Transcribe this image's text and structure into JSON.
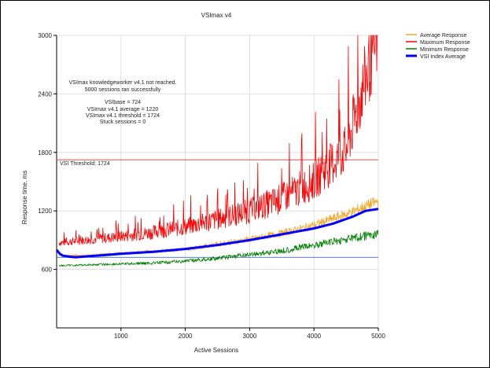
{
  "chart_data": {
    "type": "line",
    "title": "VSImax v4",
    "xlabel": "Active Sessions",
    "ylabel": "Response time, ms",
    "xlim": [
      0,
      5000
    ],
    "ylim": [
      0,
      3000
    ],
    "x_ticks": [
      "1000",
      "2000",
      "3000",
      "4000",
      "5000"
    ],
    "y_ticks": [
      "600",
      "1200",
      "1800",
      "2400",
      "3000"
    ],
    "grid": true,
    "legend_position": "right",
    "annotations": [
      "VSImax knowledgeworker v4.1 not reached.",
      "5000 sessions ran successfully",
      "VSIbase = 724",
      "VSImax v4.1 average = 1220",
      "VSImax v4.1 threshold = 1724",
      "Stuck sessions = 0"
    ],
    "threshold_label": "VSI Threshold: 1724",
    "threshold_value": 1724,
    "baseline_value": 724,
    "series": [
      {
        "name": "Average Response",
        "color": "#f5a623",
        "x": [
          0,
          500,
          1000,
          1500,
          2000,
          2500,
          3000,
          3500,
          4000,
          4500,
          5000
        ],
        "values": [
          740,
          740,
          760,
          780,
          800,
          850,
          900,
          960,
          1040,
          1150,
          1280
        ]
      },
      {
        "name": "Maximum Response",
        "color": "#ff0000",
        "x": [
          0,
          500,
          1000,
          1500,
          2000,
          2500,
          3000,
          3500,
          4000,
          4500,
          5000
        ],
        "values": [
          860,
          890,
          920,
          960,
          1010,
          1080,
          1160,
          1280,
          1450,
          1750,
          2900
        ]
      },
      {
        "name": "Minimum Response",
        "color": "#008000",
        "x": [
          0,
          500,
          1000,
          1500,
          2000,
          2500,
          3000,
          3500,
          4000,
          4500,
          5000
        ],
        "values": [
          640,
          650,
          660,
          670,
          690,
          720,
          760,
          800,
          860,
          920,
          980
        ]
      },
      {
        "name": "VSI Index Average",
        "color": "#0000ff",
        "x": [
          0,
          50,
          100,
          200,
          300,
          500,
          1000,
          1500,
          2000,
          2500,
          3000,
          3500,
          4000,
          4300,
          4600,
          4800,
          5000
        ],
        "values": [
          800,
          760,
          740,
          730,
          725,
          735,
          760,
          780,
          810,
          850,
          900,
          960,
          1020,
          1070,
          1140,
          1200,
          1220
        ]
      }
    ]
  }
}
